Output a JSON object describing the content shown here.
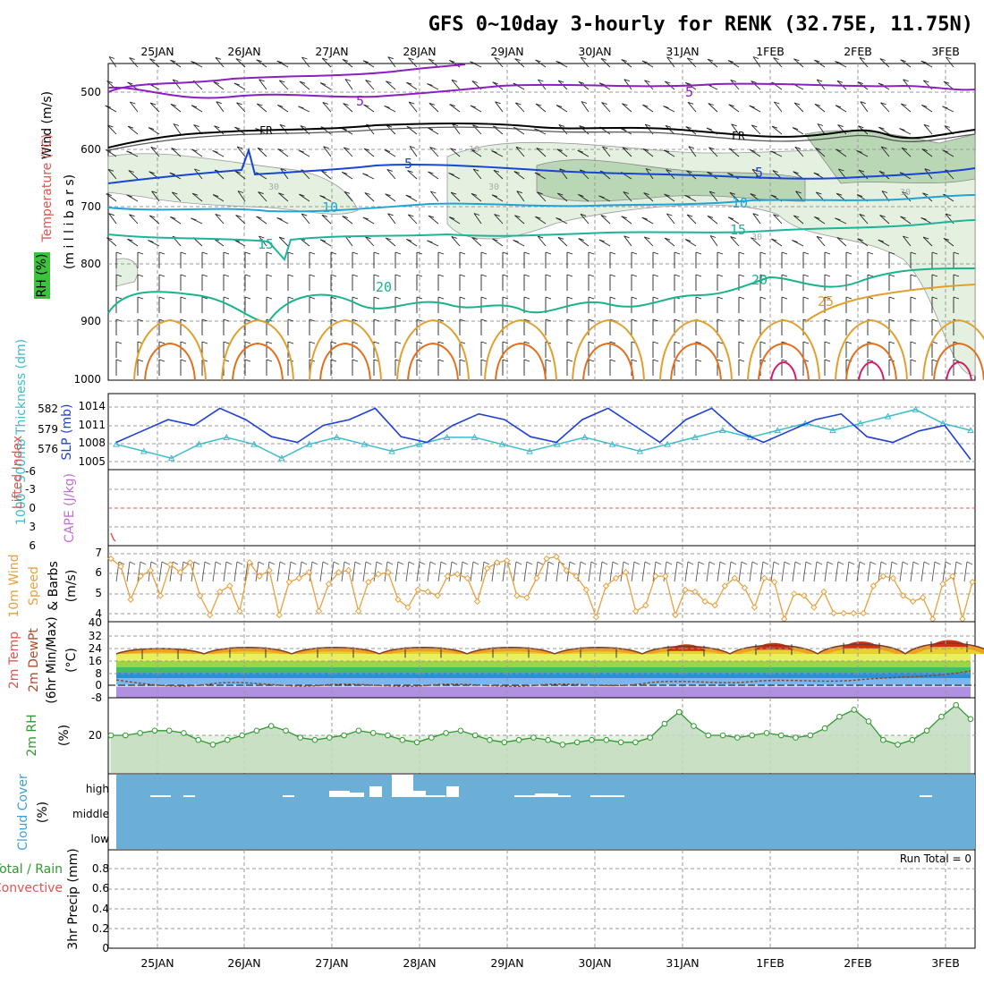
{
  "title": "GFS 0~10day 3-hourly for RENK (32.75E, 11.75N)",
  "dates": [
    "25JAN",
    "26JAN",
    "27JAN",
    "28JAN",
    "29JAN",
    "30JAN",
    "31JAN",
    "1FEB",
    "2FEB",
    "3FEB"
  ],
  "colors": {
    "cloud_blue": "#6baed6",
    "rh_fill": "#e6f3e3",
    "wind_orange": "#e8a040",
    "slp_blue": "#1f3fd6",
    "thick_cyan": "#3cbccc",
    "li_red": "#e0554f",
    "rh_green": "#2e9a2e"
  },
  "panels": {
    "upper": {
      "ylabel_wind": "Wind (m/s)",
      "ylabel_temp": "Temperature (°C)",
      "ylabel_rh": "RH (%)",
      "ylabel_mb": "(m i l l i b a r s)",
      "yticks": [
        "500",
        "600",
        "700",
        "800",
        "900",
        "1000"
      ],
      "contour_labels": [
        "5",
        "5",
        "FR",
        "FR",
        "5",
        "5",
        "10",
        "10",
        "15",
        "15",
        "20",
        "20",
        "25",
        "10",
        "30",
        "30",
        "30",
        "30"
      ]
    },
    "slp": {
      "ylabel_left": "1000~500mb Thickness (dm)",
      "ylabel_right": "SLP (mb)",
      "yticks_left": [
        "582",
        "579",
        "576"
      ],
      "yticks_right": [
        "1014",
        "1011",
        "1008",
        "1005"
      ]
    },
    "li": {
      "ylabel_left": "Lifted Index",
      "ylabel_right": "CAPE (J/kg)",
      "yticks": [
        "-6",
        "-3",
        "0",
        "3",
        "6"
      ]
    },
    "wind": {
      "ylabel": "10m Wind Speed & Barbs (m/s)",
      "ylabel_a": "10m Wind",
      "ylabel_b": "Speed",
      "ylabel_c": "& Barbs",
      "ylabel_units": "(m/s)",
      "yticks": [
        "7",
        "6",
        "5",
        "4"
      ]
    },
    "temp": {
      "ylabel_a": "2m Temp",
      "ylabel_b": "2m DewPt",
      "ylabel_c": "(6hr Min/Max)",
      "ylabel_units": "(°C)",
      "yticks": [
        "40",
        "32",
        "24",
        "16",
        "8",
        "0",
        "-8"
      ]
    },
    "rh": {
      "ylabel": "2m RH",
      "ylabel_units": "(%)",
      "yticks": [
        "20"
      ]
    },
    "cloud": {
      "ylabel": "Cloud Cover",
      "ylabel_units": "(%)",
      "levels": [
        "high",
        "middle",
        "low"
      ]
    },
    "precip": {
      "ylabel_a": "Total / Rain",
      "ylabel_b": "Convective",
      "ylabel_c": "3hr Precip (mm)",
      "yticks": [
        "0.8",
        "0.6",
        "0.4",
        "0.2",
        "0"
      ],
      "run_total": "Run Total = 0"
    }
  },
  "chart_data": [
    {
      "type": "line",
      "title": "2m Temp / 2m DewPt",
      "ylabel": "(°C)",
      "ylim": [
        -8,
        40
      ],
      "x": [
        "25JAN",
        "26JAN",
        "27JAN",
        "28JAN",
        "29JAN",
        "30JAN",
        "31JAN",
        "1FEB",
        "2FEB",
        "3FEB"
      ],
      "series": [
        {
          "name": "2m Temp",
          "values": [
            20,
            21,
            21,
            21,
            21,
            21,
            22,
            23,
            24,
            25
          ]
        },
        {
          "name": "2m DewPt",
          "values": [
            -1,
            0,
            -1,
            0,
            0,
            -1,
            1,
            2,
            3,
            5
          ]
        }
      ]
    },
    {
      "type": "line",
      "title": "10m Wind Speed",
      "ylabel": "(m/s)",
      "ylim": [
        3.6,
        7.2
      ],
      "values": [
        6.8,
        6.4,
        4.7,
        5.9,
        6.2,
        4.9,
        6.5,
        6.1,
        6.6,
        4.9,
        3.9,
        5.1,
        5.4,
        4.1,
        6.6,
        5.9,
        6.2,
        3.9,
        5.6,
        5.8,
        6.1,
        4.1,
        5.5,
        6.1,
        6.2,
        4.1,
        5.6,
        6.0,
        6.1,
        4.7,
        4.3,
        5.2,
        5.1,
        4.9,
        5.9,
        6.0,
        5.8,
        4.6,
        6.3,
        6.6,
        6.7,
        4.9,
        4.8,
        5.8,
        6.8,
        6.9,
        6.2,
        5.9,
        5.2,
        3.8,
        5.4,
        5.8,
        6.1,
        4.1,
        4.4,
        5.9,
        5.9,
        3.9,
        5.2,
        5.1,
        4.6,
        4.4,
        5.4,
        5.8,
        5.3,
        4.3,
        5.8,
        5.6,
        3.7,
        5.0,
        4.9,
        4.3,
        5.1,
        4.0,
        4.0,
        4.0,
        4.0,
        5.4,
        5.9,
        5.8,
        4.9,
        4.6,
        4.8,
        3.7,
        5.5,
        5.9,
        3.7,
        5.6
      ]
    },
    {
      "type": "line",
      "title": "SLP / Thickness",
      "series": [
        {
          "name": "SLP (mb)",
          "values": [
            1008,
            1010,
            1012,
            1011,
            1014,
            1012,
            1009,
            1008,
            1011,
            1012,
            1014,
            1009,
            1008,
            1011,
            1013,
            1012,
            1009,
            1008,
            1012,
            1014,
            1011,
            1008,
            1012,
            1014,
            1010,
            1008,
            1010,
            1012,
            1013,
            1009,
            1008,
            1010,
            1011,
            1005
          ]
        },
        {
          "name": "1000~500mb Thickness (dm)",
          "values": [
            577,
            576,
            575,
            577,
            578,
            577,
            575,
            577,
            578,
            577,
            576,
            577,
            578,
            578,
            577,
            576,
            577,
            578,
            577,
            576,
            577,
            578,
            579,
            578,
            579,
            580,
            579,
            580,
            581,
            582,
            580,
            579
          ]
        }
      ]
    },
    {
      "type": "area",
      "title": "2m RH",
      "ylabel": "(%)",
      "values": [
        20,
        20,
        21,
        22,
        22,
        21,
        18,
        16,
        18,
        20,
        22,
        24,
        22,
        19,
        18,
        19,
        20,
        22,
        21,
        20,
        18,
        17,
        19,
        21,
        22,
        20,
        18,
        17,
        18,
        19,
        18,
        16,
        17,
        18,
        18,
        17,
        17,
        19,
        25,
        30,
        24,
        20,
        20,
        19,
        20,
        21,
        20,
        19,
        20,
        23,
        28,
        31,
        26,
        18,
        16,
        18,
        22,
        28,
        33,
        27
      ]
    },
    {
      "type": "bar",
      "title": "Cloud Cover",
      "categories": [
        "high",
        "middle",
        "low"
      ],
      "values": [
        12,
        3,
        0
      ]
    },
    {
      "type": "bar",
      "title": "3hr Precip (mm)",
      "ylim": [
        0,
        0.9
      ],
      "values": [
        0,
        0,
        0,
        0,
        0,
        0,
        0,
        0,
        0,
        0
      ],
      "annotation": "Run Total = 0"
    }
  ]
}
